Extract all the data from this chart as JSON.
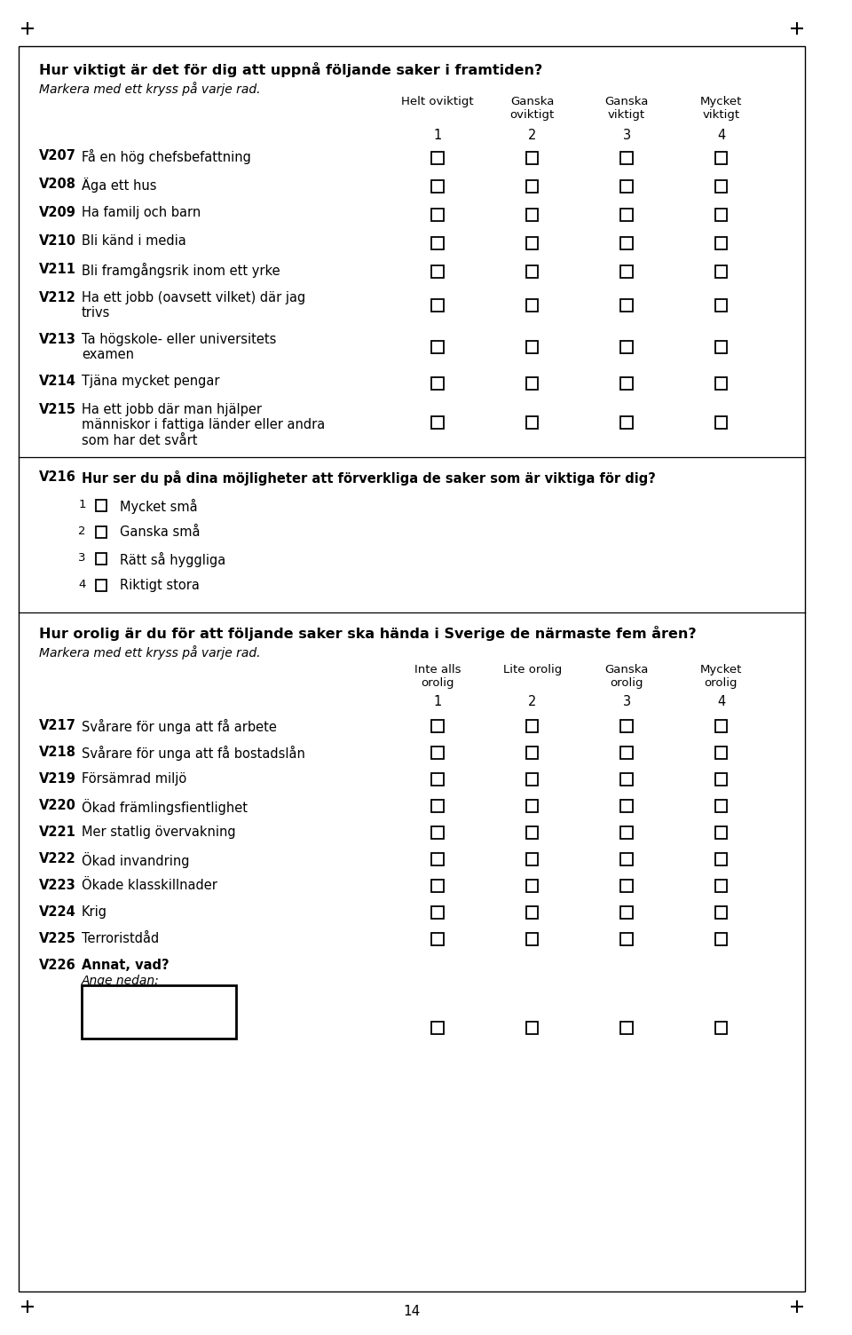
{
  "page_bg": "#ffffff",
  "border_color": "#000000",
  "text_color": "#000000",
  "page_num": "14",
  "section1": {
    "title": "Hur viktigt är det för dig att uppnå följande saker i framtiden?",
    "subtitle": "Markera med ett kryss på varje rad.",
    "col_headers": [
      [
        "Helt oviktigt",
        "1"
      ],
      [
        "Ganska\noviktigt",
        "2"
      ],
      [
        "Ganska\nviktigt",
        "3"
      ],
      [
        "Mycket\nviktigt",
        "4"
      ]
    ],
    "rows": [
      [
        "V207",
        "Få en hög chefsbefattning",
        1
      ],
      [
        "V208",
        "Äga ett hus",
        1
      ],
      [
        "V209",
        "Ha familj och barn",
        1
      ],
      [
        "V210",
        "Bli känd i media",
        1
      ],
      [
        "V211",
        "Bli framgångsrik inom ett yrke",
        1
      ],
      [
        "V212",
        "Ha ett jobb (oavsett vilket) där jag\ntrivs",
        2
      ],
      [
        "V213",
        "Ta högskole- eller universitets\nexamen",
        2
      ],
      [
        "V214",
        "Tjäna mycket pengar",
        1
      ],
      [
        "V215",
        "Ha ett jobb där man hjälper\nmänniskor i fattiga länder eller andra\nsom har det svårt",
        3
      ]
    ]
  },
  "section2": {
    "var": "V216",
    "question": "Hur ser du på dina möjligheter att förverkliga de saker som är viktiga för dig?",
    "options": [
      [
        "1",
        "Mycket små"
      ],
      [
        "2",
        "Ganska små"
      ],
      [
        "3",
        "Rätt så hyggliga"
      ],
      [
        "4",
        "Riktigt stora"
      ]
    ]
  },
  "section3": {
    "title": "Hur orolig är du för att följande saker ska hända i Sverige de närmaste fem åren?",
    "subtitle": "Markera med ett kryss på varje rad.",
    "col_headers": [
      [
        "Inte alls\norolig",
        "1"
      ],
      [
        "Lite orolig",
        "2"
      ],
      [
        "Ganska\norolig",
        "3"
      ],
      [
        "Mycket\norolig",
        "4"
      ]
    ],
    "rows": [
      [
        "V217",
        "Svårare för unga att få arbete",
        1
      ],
      [
        "V218",
        "Svårare för unga att få bostadslån",
        1
      ],
      [
        "V219",
        "Försämrad miljö",
        1
      ],
      [
        "V220",
        "Ökad främlingsfientlighet",
        1
      ],
      [
        "V221",
        "Mer statlig övervakning",
        1
      ],
      [
        "V222",
        "Ökad invandring",
        1
      ],
      [
        "V223",
        "Ökade klasskillnader",
        1
      ],
      [
        "V224",
        "Krig",
        1
      ],
      [
        "V225",
        "Terroristdåd",
        1
      ],
      [
        "V226",
        "Annat, vad?",
        0
      ]
    ]
  }
}
